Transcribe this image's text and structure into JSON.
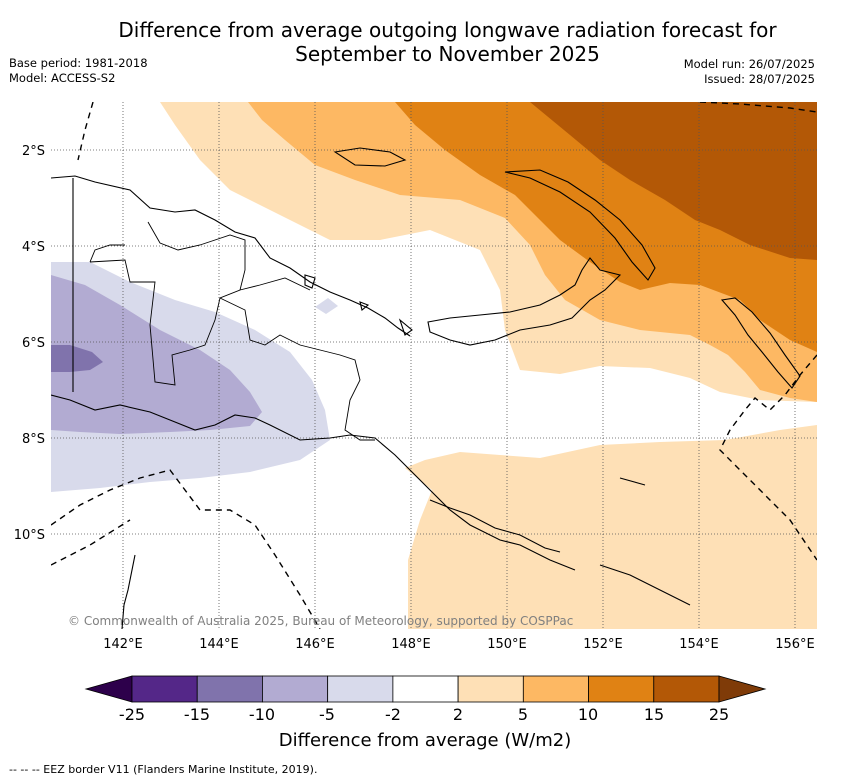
{
  "header": {
    "title_line1": "Difference from average outgoing longwave radiation forecast for",
    "title_line2": "September to November 2025",
    "base_period": "Base period: 1981-2018",
    "model": "Model: ACCESS-S2",
    "model_run": "Model run: 26/07/2025",
    "issued": "Issued: 28/07/2025"
  },
  "map": {
    "lat_labels": [
      "2°S",
      "4°S",
      "6°S",
      "8°S",
      "10°S"
    ],
    "lon_labels": [
      "142°E",
      "144°E",
      "146°E",
      "148°E",
      "150°E",
      "152°E",
      "154°E",
      "156°E"
    ],
    "copyright": "© Commonwealth of Australia 2025, Bureau of Meteorology, supported by COSPPac",
    "grid": "on"
  },
  "legend": {
    "title": "Difference from average (W/m2)",
    "bins": [
      {
        "label": "-25",
        "color": "#2d004b"
      },
      {
        "label": "-15",
        "color": "#542788"
      },
      {
        "label": "-10",
        "color": "#8073ac"
      },
      {
        "label": "-5",
        "color": "#b2abd2"
      },
      {
        "label": "-2",
        "color": "#d8daeb"
      },
      {
        "label": "2",
        "color": "#ffffff"
      },
      {
        "label": "5",
        "color": "#fee0b6"
      },
      {
        "label": "10",
        "color": "#fdb863"
      },
      {
        "label": "15",
        "color": "#e08214"
      },
      {
        "label": "25",
        "color": "#b35806"
      }
    ],
    "overflow_high_color": "#7f3b08",
    "underflow_low_color": "#2d004b"
  },
  "footnote": "--  --  -- EEZ border V11 (Flanders Marine Institute, 2019)."
}
